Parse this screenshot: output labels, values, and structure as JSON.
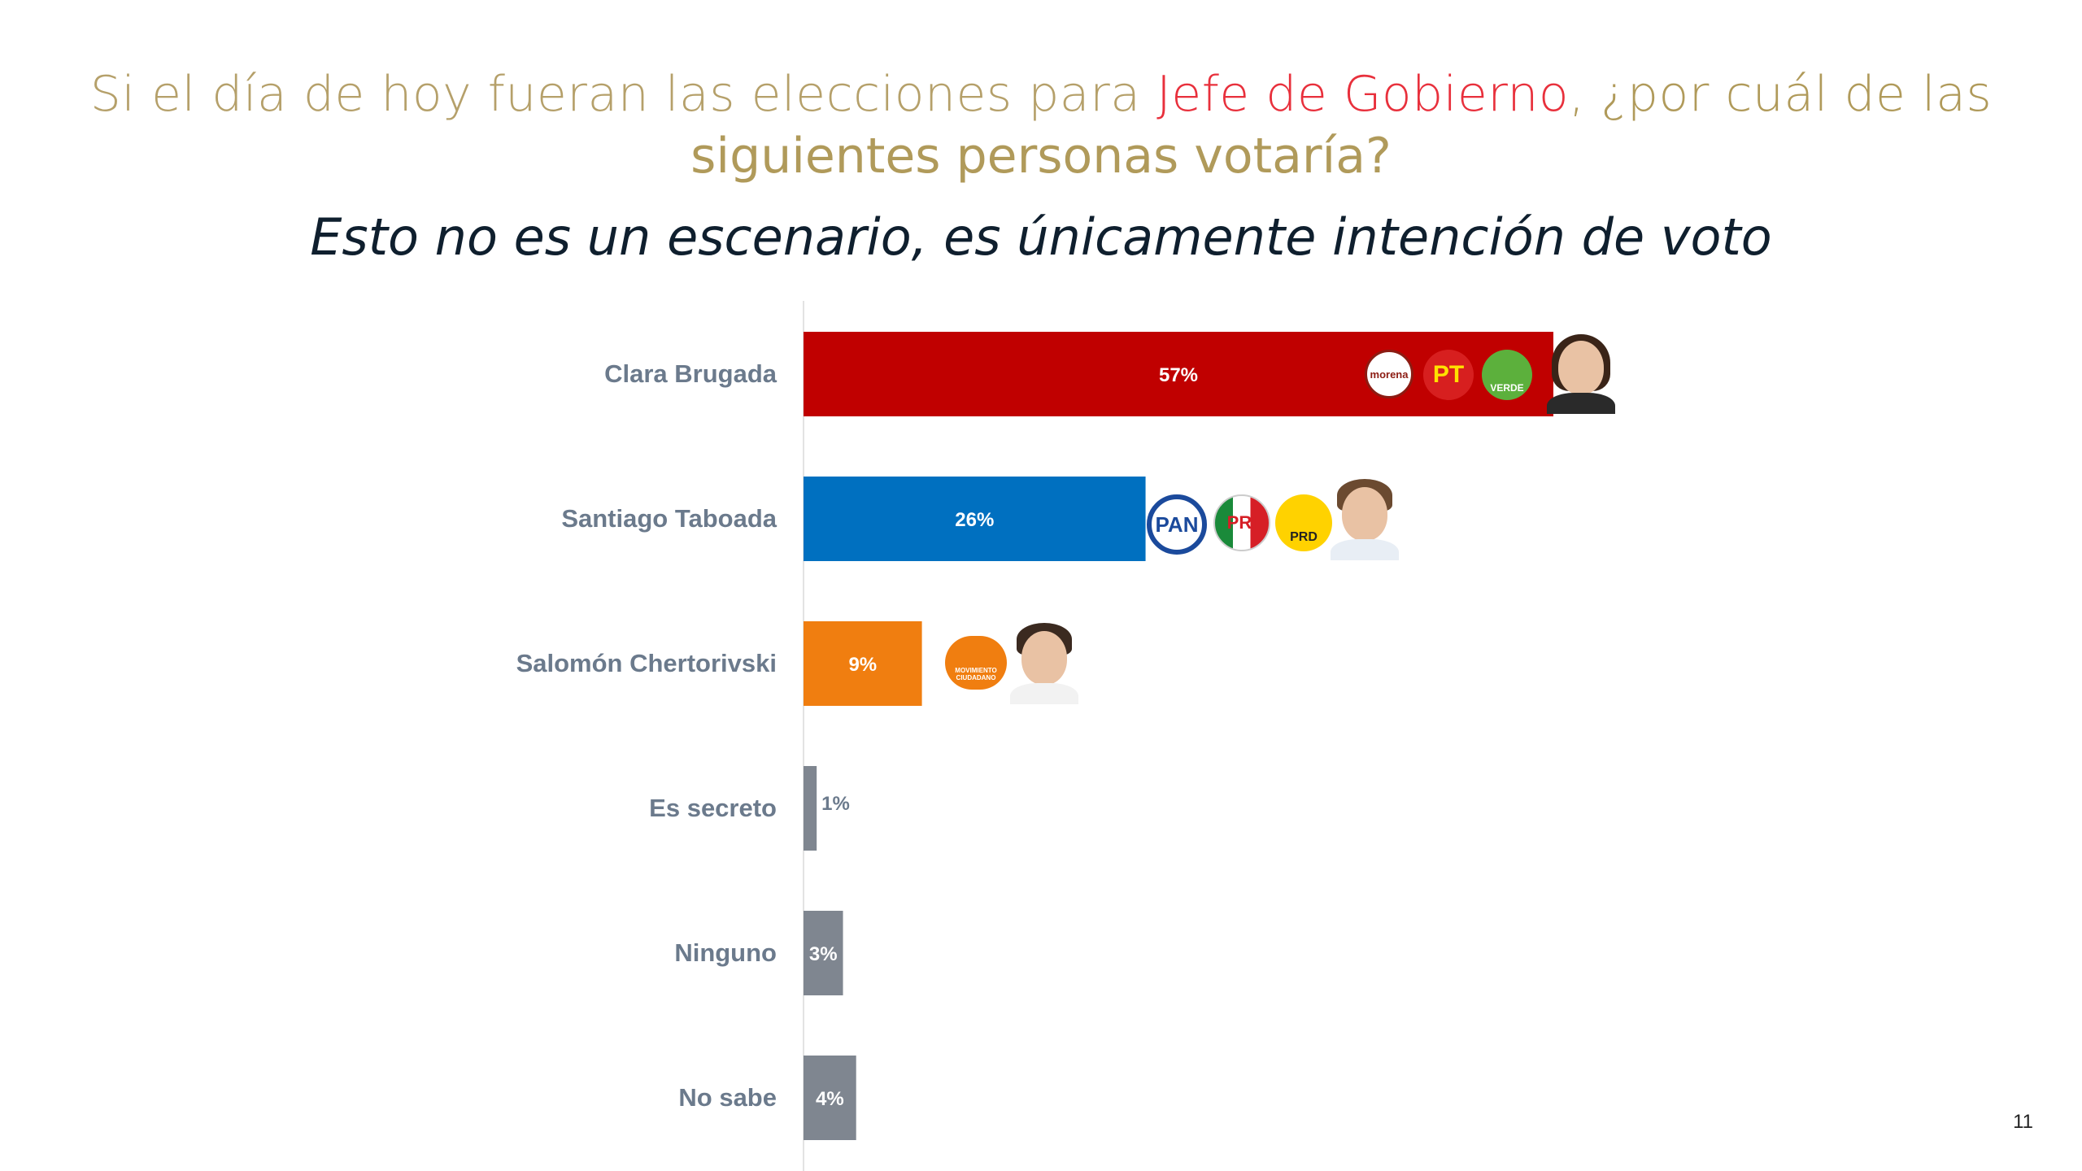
{
  "title": {
    "part1": "Si el día de hoy fueran las elecciones para ",
    "highlight": "Jefe de Gobierno",
    "part2": ",  ¿por cuál de las",
    "line2": "siguientes personas votaría?"
  },
  "subtitle": "Esto no es un escenario, es únicamente intención de voto",
  "page_number": "11",
  "logos": {
    "morena": "morena",
    "pt": "PT",
    "verde": "VERDE",
    "pan": "PAN",
    "pri": "PRI",
    "prd": "PRD",
    "mc": "MOVIMIENTO CIUDADANO"
  },
  "chart_data": {
    "type": "bar",
    "orientation": "horizontal",
    "categories": [
      "Clara Brugada",
      "Santiago Taboada",
      "Salomón Chertorivski",
      "Es secreto",
      "Ninguno",
      "No sabe"
    ],
    "values": [
      57,
      26,
      9,
      1,
      3,
      4
    ],
    "value_labels": [
      "57%",
      "26%",
      "9%",
      "1%",
      "3%",
      "4%"
    ],
    "colors": [
      "#c00000",
      "#0070c0",
      "#f07e10",
      "#7f8690",
      "#7f8690",
      "#7f8690"
    ],
    "unit": "%",
    "xlim": [
      0,
      100
    ],
    "grid": false,
    "legend": "none"
  }
}
